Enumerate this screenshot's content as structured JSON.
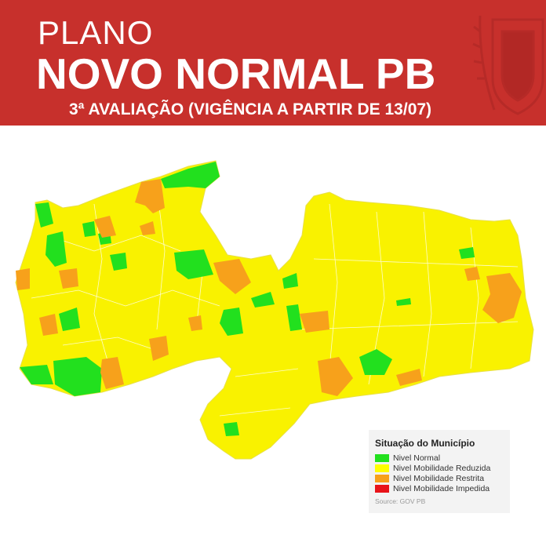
{
  "header": {
    "line1": "PLANO",
    "line2": "NOVO NORMAL PB",
    "line3": "3ª AVALIAÇÃO (VIGÊNCIA A PARTIR DE 13/07)"
  },
  "colors": {
    "header": "#c7302c",
    "normal": "#22e01e",
    "reduzida": "#ffff00",
    "restrita": "#f7a11b",
    "impedida": "#e8141a"
  },
  "legend": {
    "title": "Situação do Município",
    "items": [
      {
        "label": "Nivel Normal",
        "color": "#22e01e"
      },
      {
        "label": "Nivel Mobilidade Reduzida",
        "color": "#ffff00"
      },
      {
        "label": "Nivel Mobilidade Restrita",
        "color": "#f7a11b"
      },
      {
        "label": "Nivel Mobilidade Impedida",
        "color": "#e8141a"
      }
    ],
    "source": "Source: GOV PB"
  }
}
